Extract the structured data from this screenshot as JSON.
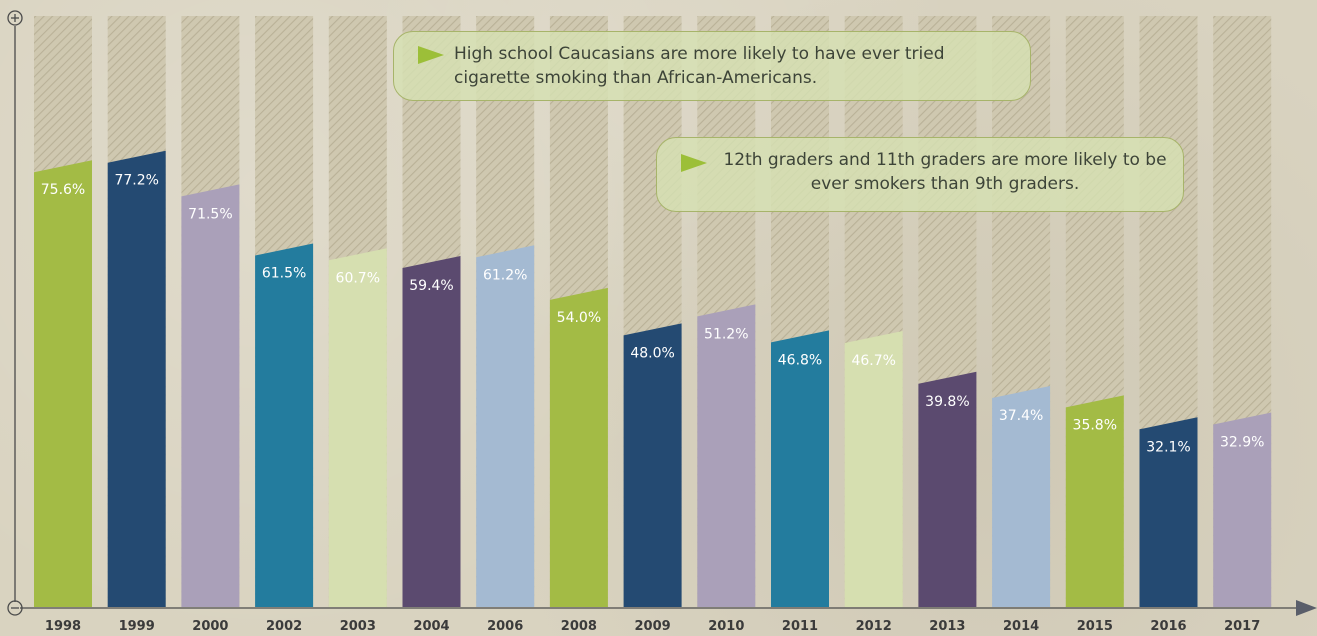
{
  "chart_data": {
    "type": "bar",
    "categories": [
      "1998",
      "1999",
      "2000",
      "2002",
      "2003",
      "2004",
      "2006",
      "2008",
      "2009",
      "2010",
      "2011",
      "2012",
      "2013",
      "2014",
      "2015",
      "2016",
      "2017"
    ],
    "values": [
      75.6,
      77.2,
      71.5,
      61.5,
      60.7,
      59.4,
      61.2,
      54.0,
      48.0,
      51.2,
      46.8,
      46.7,
      39.8,
      37.4,
      35.8,
      32.1,
      32.9
    ],
    "labels": [
      "75.6%",
      "77.2%",
      "71.5%",
      "61.5%",
      "60.7%",
      "59.4%",
      "61.2%",
      "54.0%",
      "48.0%",
      "51.2%",
      "46.8%",
      "46.7%",
      "39.8%",
      "37.4%",
      "35.8%",
      "32.1%",
      "32.9%"
    ],
    "colors": [
      "#a3bb45",
      "#244a72",
      "#aaa0b9",
      "#237c9e",
      "#d6dfb0",
      "#5b4a6f",
      "#a4bad2",
      "#a3bb45",
      "#244a72",
      "#aaa0b9",
      "#237c9e",
      "#d6dfb0",
      "#5b4a6f",
      "#a4bad2",
      "#a3bb45",
      "#244a72",
      "#aaa0b9"
    ],
    "ylim": [
      0,
      100
    ],
    "title": "",
    "xlabel": "",
    "ylabel": "",
    "legend": "none",
    "grid": false,
    "y_axis_top_symbol": "⊕",
    "y_axis_bottom_symbol": "⊖"
  },
  "annotations": [
    "High school Caucasians are more likely to have ever tried cigarette smoking than African-Americans.",
    "12th graders and 11th graders are more likely to be ever smokers than 9th graders."
  ]
}
